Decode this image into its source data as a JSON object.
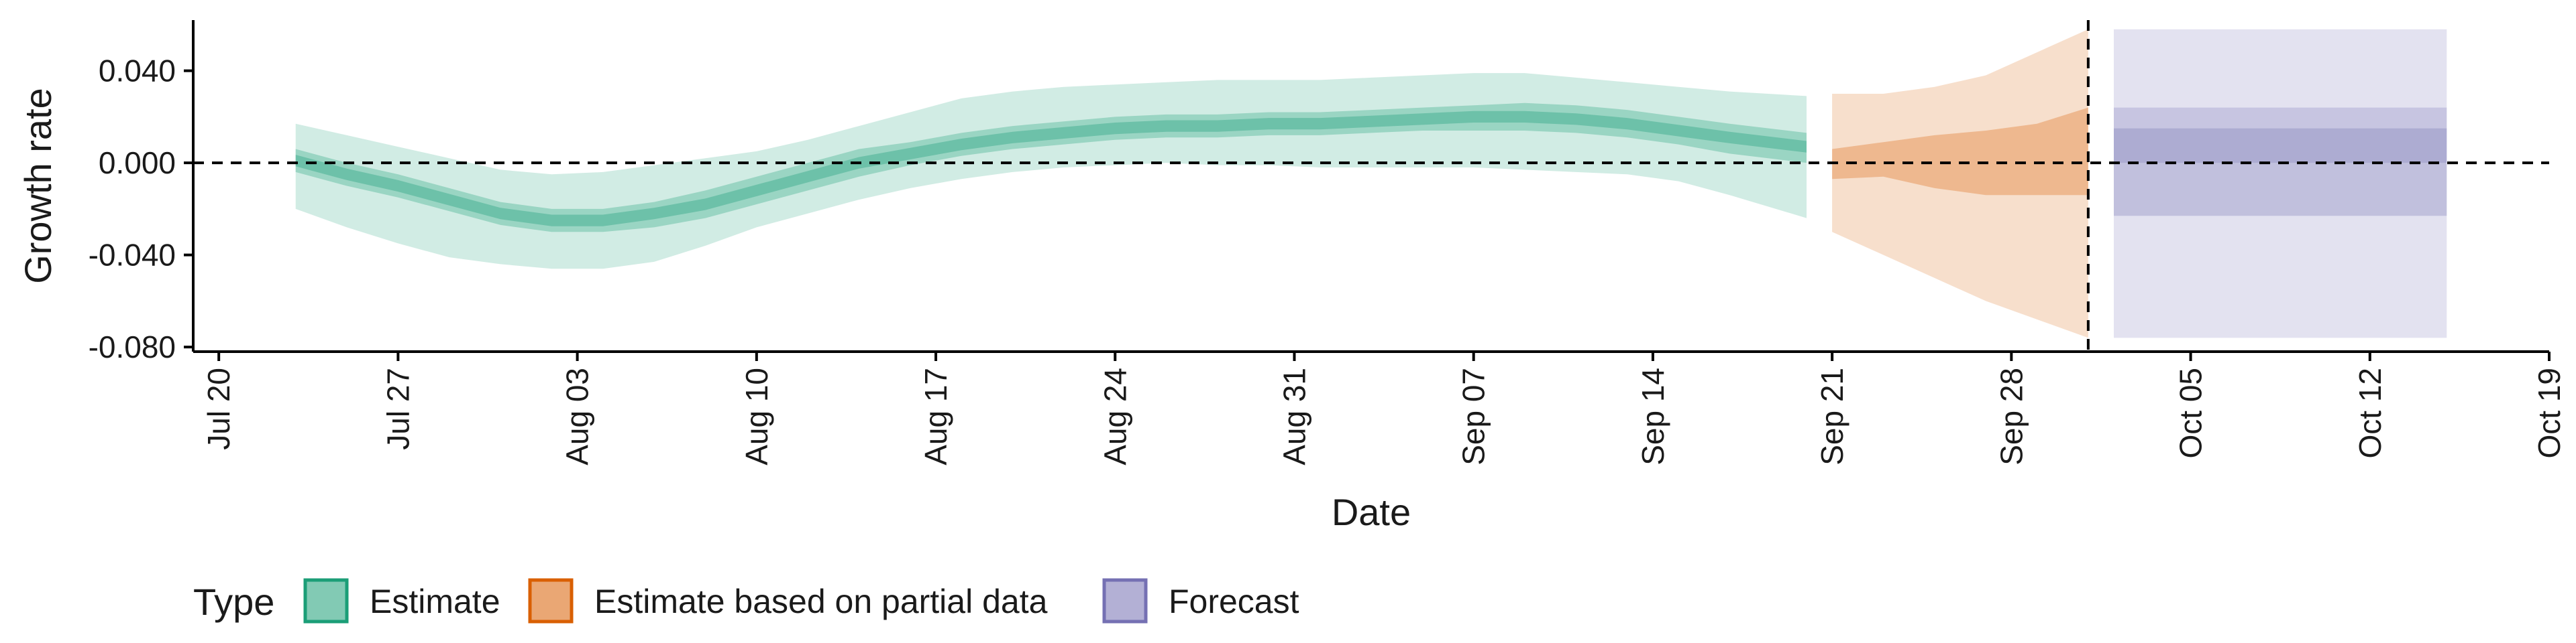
{
  "chart_data": {
    "type": "area",
    "title": "",
    "xlabel": "Date",
    "ylabel": "Growth rate",
    "x_range": [
      "2020-07-19",
      "2020-10-19"
    ],
    "ylim": [
      -0.082,
      0.062
    ],
    "x_ticks": [
      {
        "date": "2020-07-20",
        "label": "Jul 20"
      },
      {
        "date": "2020-07-27",
        "label": "Jul 27"
      },
      {
        "date": "2020-08-03",
        "label": "Aug 03"
      },
      {
        "date": "2020-08-10",
        "label": "Aug 10"
      },
      {
        "date": "2020-08-17",
        "label": "Aug 17"
      },
      {
        "date": "2020-08-24",
        "label": "Aug 24"
      },
      {
        "date": "2020-08-31",
        "label": "Aug 31"
      },
      {
        "date": "2020-09-07",
        "label": "Sep 07"
      },
      {
        "date": "2020-09-14",
        "label": "Sep 14"
      },
      {
        "date": "2020-09-21",
        "label": "Sep 21"
      },
      {
        "date": "2020-09-28",
        "label": "Sep 28"
      },
      {
        "date": "2020-10-05",
        "label": "Oct 05"
      },
      {
        "date": "2020-10-12",
        "label": "Oct 12"
      },
      {
        "date": "2020-10-19",
        "label": "Oct 19"
      }
    ],
    "y_ticks": [
      {
        "value": 0.04,
        "label": "0.040"
      },
      {
        "value": 0.0,
        "label": "0.000"
      },
      {
        "value": -0.04,
        "label": "-0.040"
      },
      {
        "value": -0.08,
        "label": "-0.080"
      }
    ],
    "reference_lines": {
      "horizontal_y": 0.0,
      "vertical_date": "2020-10-01"
    },
    "grid": false,
    "legend": {
      "title": "Type",
      "position": "bottom-left",
      "entries": [
        {
          "label": "Estimate",
          "color": "#1b9e77"
        },
        {
          "label": "Estimate based on partial data",
          "color": "#d95f02"
        },
        {
          "label": "Forecast",
          "color": "#7570b3"
        }
      ]
    },
    "series": [
      {
        "type_index": 0,
        "color": "#1b9e77",
        "x": [
          "2020-07-23",
          "2020-07-25",
          "2020-07-27",
          "2020-07-29",
          "2020-07-31",
          "2020-08-02",
          "2020-08-04",
          "2020-08-06",
          "2020-08-08",
          "2020-08-10",
          "2020-08-12",
          "2020-08-14",
          "2020-08-16",
          "2020-08-18",
          "2020-08-20",
          "2020-08-22",
          "2020-08-24",
          "2020-08-26",
          "2020-08-28",
          "2020-08-30",
          "2020-09-01",
          "2020-09-03",
          "2020-09-05",
          "2020-09-07",
          "2020-09-09",
          "2020-09-11",
          "2020-09-13",
          "2020-09-15",
          "2020-09-17",
          "2020-09-20"
        ],
        "median": [
          0.001,
          -0.005,
          -0.01,
          -0.016,
          -0.022,
          -0.025,
          -0.025,
          -0.022,
          -0.018,
          -0.012,
          -0.006,
          0.0,
          0.004,
          0.008,
          0.011,
          0.013,
          0.015,
          0.016,
          0.016,
          0.017,
          0.017,
          0.018,
          0.019,
          0.02,
          0.02,
          0.019,
          0.017,
          0.014,
          0.011,
          0.007
        ],
        "lower50": [
          -0.004,
          -0.01,
          -0.015,
          -0.021,
          -0.027,
          -0.03,
          -0.03,
          -0.028,
          -0.024,
          -0.018,
          -0.012,
          -0.006,
          -0.001,
          0.003,
          0.006,
          0.008,
          0.01,
          0.011,
          0.011,
          0.012,
          0.012,
          0.013,
          0.014,
          0.014,
          0.014,
          0.013,
          0.011,
          0.008,
          0.004,
          0.0
        ],
        "upper50": [
          0.006,
          0.0,
          -0.005,
          -0.011,
          -0.017,
          -0.02,
          -0.02,
          -0.017,
          -0.012,
          -0.006,
          0.0,
          0.006,
          0.009,
          0.013,
          0.016,
          0.018,
          0.02,
          0.021,
          0.021,
          0.022,
          0.022,
          0.023,
          0.024,
          0.025,
          0.026,
          0.025,
          0.023,
          0.02,
          0.017,
          0.013
        ],
        "lower90": [
          -0.02,
          -0.028,
          -0.035,
          -0.041,
          -0.044,
          -0.046,
          -0.046,
          -0.043,
          -0.036,
          -0.028,
          -0.022,
          -0.016,
          -0.011,
          -0.007,
          -0.004,
          -0.002,
          -0.001,
          0.0,
          -0.001,
          -0.001,
          -0.002,
          -0.002,
          -0.002,
          -0.002,
          -0.003,
          -0.004,
          -0.005,
          -0.008,
          -0.014,
          -0.024
        ],
        "upper90": [
          0.017,
          0.012,
          0.007,
          0.002,
          -0.003,
          -0.005,
          -0.004,
          -0.001,
          0.002,
          0.005,
          0.01,
          0.016,
          0.022,
          0.028,
          0.031,
          0.033,
          0.034,
          0.035,
          0.036,
          0.036,
          0.036,
          0.037,
          0.038,
          0.039,
          0.039,
          0.037,
          0.035,
          0.033,
          0.031,
          0.029
        ]
      },
      {
        "type_index": 1,
        "color": "#d95f02",
        "x": [
          "2020-09-21",
          "2020-09-23",
          "2020-09-25",
          "2020-09-27",
          "2020-09-29",
          "2020-10-01"
        ],
        "median": [
          0.0,
          0.002,
          -0.001,
          0.001,
          0.004,
          0.008
        ],
        "lower50": [
          -0.007,
          -0.006,
          -0.011,
          -0.014,
          -0.014,
          -0.014
        ],
        "upper50": [
          0.006,
          0.009,
          0.012,
          0.014,
          0.017,
          0.024
        ],
        "lower90": [
          -0.03,
          -0.04,
          -0.05,
          -0.06,
          -0.068,
          -0.076
        ],
        "upper90": [
          0.03,
          0.03,
          0.033,
          0.038,
          0.048,
          0.058
        ]
      },
      {
        "type_index": 2,
        "color": "#7570b3",
        "x": [
          "2020-10-02",
          "2020-10-15"
        ],
        "median": [
          -0.004,
          -0.004
        ],
        "lower50": [
          -0.023,
          -0.023
        ],
        "upper50": [
          0.015,
          0.015
        ],
        "lower90": [
          -0.076,
          -0.076
        ],
        "upper90": [
          0.058,
          0.058
        ],
        "inner_lower": [
          0.0,
          0.0
        ],
        "inner_upper": [
          0.024,
          0.024
        ]
      }
    ]
  }
}
